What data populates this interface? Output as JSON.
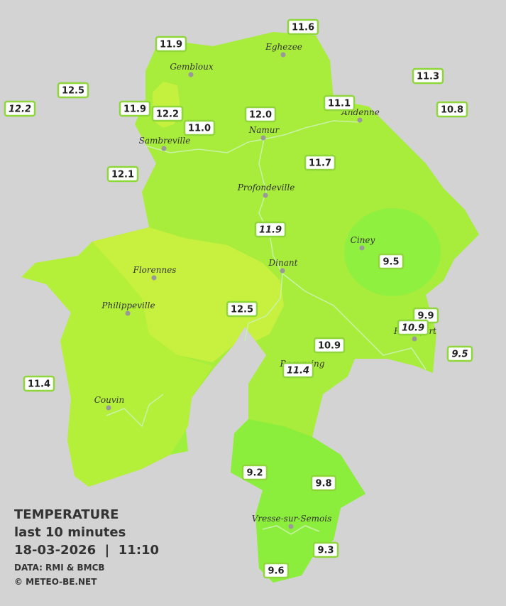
{
  "map": {
    "places": [
      {
        "name": "Eghezee"
      },
      {
        "name": "Gembloux"
      },
      {
        "name": "Andenne"
      },
      {
        "name": "Namur"
      },
      {
        "name": "Sambreville"
      },
      {
        "name": "Profondeville"
      },
      {
        "name": "Ciney"
      },
      {
        "name": "Florennes"
      },
      {
        "name": "Dinant"
      },
      {
        "name": "Philippeville"
      },
      {
        "name": "Beauraing"
      },
      {
        "name": "Rochefort"
      },
      {
        "name": "Couvin"
      },
      {
        "name": "Vresse-sur-Semois"
      }
    ],
    "stations": [
      {
        "label": "11.6"
      },
      {
        "label": "11.9"
      },
      {
        "label": "11.3"
      },
      {
        "label": "12.5"
      },
      {
        "label": "12.2",
        "italic": true
      },
      {
        "label": "11.1"
      },
      {
        "label": "10.8"
      },
      {
        "label": "11.9"
      },
      {
        "label": "12.2"
      },
      {
        "label": "12.0"
      },
      {
        "label": "11.0"
      },
      {
        "label": "11.7"
      },
      {
        "label": "12.1"
      },
      {
        "label": "11.9",
        "italic": true
      },
      {
        "label": "9.5"
      },
      {
        "label": "12.5"
      },
      {
        "label": "9.9"
      },
      {
        "label": "10.9",
        "italic": true
      },
      {
        "label": "10.9"
      },
      {
        "label": "9.5",
        "italic": true
      },
      {
        "label": "11.4",
        "italic": true
      },
      {
        "label": "11.4"
      },
      {
        "label": "9.2"
      },
      {
        "label": "9.8"
      },
      {
        "label": "9.3"
      },
      {
        "label": "9.6"
      }
    ],
    "legend": {
      "title": "TEMPERATURE",
      "subtitle": "last 10 minutes",
      "datetime": "18-03-2026  |  11:10",
      "source": "DATA: RMI & BMCB",
      "credit": "© METEO-BE.NET"
    }
  }
}
